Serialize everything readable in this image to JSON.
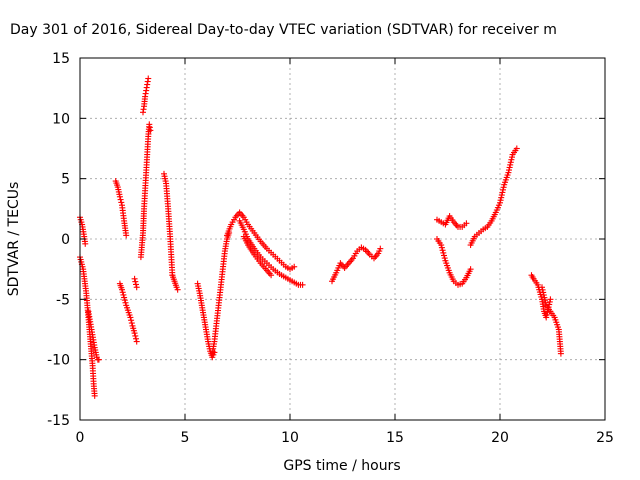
{
  "chart_data": {
    "type": "scatter",
    "title": "Day 301 of 2016, Sidereal Day-to-day VTEC variation (SDTVAR) for receiver m",
    "xlabel": "GPS time / hours",
    "ylabel": "SDTVAR / TECUs",
    "xlim": [
      0,
      25
    ],
    "ylim": [
      -15,
      15
    ],
    "xticks": [
      0,
      5,
      10,
      15,
      20,
      25
    ],
    "yticks": [
      -15,
      -10,
      -5,
      0,
      5,
      10,
      15
    ],
    "xtick_labels": [
      "0",
      "5",
      "10",
      "15",
      "20",
      "25"
    ],
    "ytick_labels": [
      "-15",
      "-10",
      "-5",
      "0",
      "5",
      "10",
      "15"
    ],
    "grid": true,
    "marker": "plus",
    "color": "#ff0000",
    "segments": [
      {
        "x": [
          0.0,
          0.1,
          0.2,
          0.25
        ],
        "y": [
          1.8,
          1.2,
          0.2,
          -0.4
        ]
      },
      {
        "x": [
          0.0,
          0.15,
          0.3,
          0.4,
          0.5,
          0.6,
          0.65,
          0.7
        ],
        "y": [
          -1.5,
          -2.5,
          -4.5,
          -6.5,
          -8.5,
          -10.5,
          -12.0,
          -13.0
        ]
      },
      {
        "x": [
          0.4,
          0.55,
          0.7,
          0.8,
          0.85,
          0.9
        ],
        "y": [
          -6.0,
          -7.5,
          -9.0,
          -9.8,
          -10.0,
          -10.0
        ]
      },
      {
        "x": [
          1.7,
          1.8,
          1.9,
          2.0,
          2.1,
          2.2
        ],
        "y": [
          4.8,
          4.3,
          3.5,
          2.8,
          1.5,
          0.3
        ]
      },
      {
        "x": [
          1.9,
          2.0,
          2.2,
          2.4,
          2.5,
          2.6,
          2.7
        ],
        "y": [
          -3.7,
          -4.2,
          -5.5,
          -6.5,
          -7.2,
          -7.8,
          -8.5
        ]
      },
      {
        "x": [
          2.6,
          2.7
        ],
        "y": [
          -3.3,
          -4.0
        ]
      },
      {
        "x": [
          2.9,
          3.0,
          3.05,
          3.1,
          3.15,
          3.2,
          3.25,
          3.3,
          3.35
        ],
        "y": [
          -1.5,
          0.5,
          2.5,
          4.0,
          5.5,
          7.0,
          8.5,
          9.5,
          9.0
        ]
      },
      {
        "x": [
          3.0,
          3.05,
          3.1,
          3.15,
          3.2,
          3.25
        ],
        "y": [
          10.5,
          11.0,
          11.8,
          12.3,
          12.8,
          13.3
        ]
      },
      {
        "x": [
          4.0,
          4.1,
          4.2,
          4.3,
          4.35,
          4.4
        ],
        "y": [
          5.4,
          4.6,
          2.5,
          0.0,
          -1.5,
          -3.0
        ]
      },
      {
        "x": [
          4.4,
          4.5,
          4.6,
          4.65
        ],
        "y": [
          -3.0,
          -3.5,
          -4.0,
          -4.2
        ]
      },
      {
        "x": [
          5.6,
          5.7,
          5.8,
          5.9,
          6.0,
          6.1,
          6.2,
          6.3,
          6.4
        ],
        "y": [
          -3.7,
          -4.5,
          -5.5,
          -6.5,
          -7.5,
          -8.5,
          -9.3,
          -9.8,
          -9.4
        ]
      },
      {
        "x": [
          6.3,
          6.4,
          6.5,
          6.6,
          6.7,
          6.8,
          6.9,
          7.0,
          7.1
        ],
        "y": [
          -9.5,
          -8.5,
          -7.0,
          -5.5,
          -4.0,
          -2.5,
          -1.0,
          0.0,
          0.5
        ]
      },
      {
        "x": [
          7.0,
          7.2,
          7.4,
          7.6,
          7.8,
          8.0,
          8.3,
          8.6,
          8.9,
          9.2,
          9.5,
          9.8,
          10.0,
          10.2
        ],
        "y": [
          0.3,
          1.2,
          1.8,
          2.2,
          1.8,
          1.2,
          0.5,
          -0.2,
          -0.8,
          -1.3,
          -1.8,
          -2.3,
          -2.5,
          -2.3
        ]
      },
      {
        "x": [
          7.6,
          7.8,
          8.0,
          8.3,
          8.6,
          8.9,
          9.2,
          9.5,
          9.8,
          10.1,
          10.4,
          10.6
        ],
        "y": [
          1.5,
          0.8,
          0.0,
          -0.8,
          -1.5,
          -2.0,
          -2.5,
          -2.9,
          -3.2,
          -3.5,
          -3.8,
          -3.8
        ]
      },
      {
        "x": [
          7.8,
          8.0,
          8.3,
          8.6,
          8.9,
          9.1
        ],
        "y": [
          0.2,
          -0.5,
          -1.3,
          -2.0,
          -2.6,
          -3.0
        ]
      },
      {
        "x": [
          12.0,
          12.2,
          12.4,
          12.6,
          12.8,
          13.0,
          13.2,
          13.4,
          13.6,
          13.8,
          14.0,
          14.2,
          14.3
        ],
        "y": [
          -3.5,
          -2.8,
          -2.0,
          -2.4,
          -2.0,
          -1.6,
          -1.0,
          -0.7,
          -0.9,
          -1.3,
          -1.6,
          -1.2,
          -0.8
        ]
      },
      {
        "x": [
          17.0,
          17.2,
          17.4,
          17.6,
          17.8,
          18.0,
          18.2,
          18.4
        ],
        "y": [
          1.6,
          1.4,
          1.2,
          1.9,
          1.4,
          1.0,
          1.0,
          1.3
        ]
      },
      {
        "x": [
          17.0,
          17.2,
          17.4,
          17.6,
          17.8,
          18.0,
          18.2,
          18.4,
          18.6
        ],
        "y": [
          0.0,
          -0.5,
          -1.8,
          -2.8,
          -3.5,
          -3.8,
          -3.7,
          -3.2,
          -2.5
        ]
      },
      {
        "x": [
          18.6,
          18.8,
          19.0,
          19.2,
          19.4,
          19.6,
          19.8,
          20.0,
          20.2,
          20.4,
          20.6,
          20.8
        ],
        "y": [
          -0.5,
          0.2,
          0.5,
          0.8,
          1.0,
          1.5,
          2.2,
          3.0,
          4.5,
          5.5,
          7.0,
          7.5
        ]
      },
      {
        "x": [
          21.5,
          21.6,
          21.8,
          22.0,
          22.1,
          22.2,
          22.4
        ],
        "y": [
          -3.0,
          -3.3,
          -3.8,
          -5.0,
          -6.0,
          -6.5,
          -5.0
        ]
      },
      {
        "x": [
          22.0,
          22.2,
          22.4,
          22.6,
          22.8,
          22.9
        ],
        "y": [
          -4.0,
          -5.5,
          -6.0,
          -6.5,
          -7.5,
          -9.5
        ]
      }
    ]
  }
}
